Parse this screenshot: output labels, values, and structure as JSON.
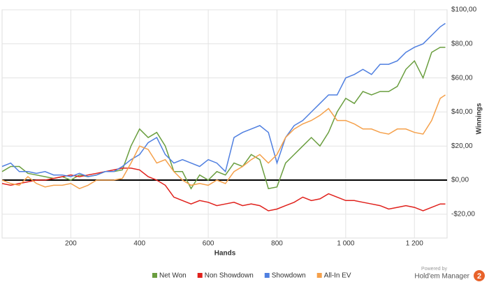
{
  "chart_data": {
    "type": "line",
    "x_label": "Hands",
    "y_label": "Winnings",
    "x": [
      0,
      25,
      50,
      75,
      100,
      125,
      150,
      175,
      200,
      225,
      250,
      275,
      300,
      325,
      350,
      375,
      400,
      425,
      450,
      475,
      500,
      525,
      550,
      575,
      600,
      625,
      650,
      675,
      700,
      725,
      750,
      775,
      800,
      825,
      850,
      875,
      900,
      925,
      950,
      975,
      1000,
      1025,
      1050,
      1075,
      1100,
      1125,
      1150,
      1175,
      1200,
      1225,
      1250,
      1275,
      1290
    ],
    "series": [
      {
        "name": "Net Won",
        "color": "#6a9e3f",
        "values": [
          5,
          8,
          8,
          4,
          3,
          2,
          1,
          2,
          0,
          3,
          2,
          3,
          5,
          5,
          6,
          20,
          30,
          25,
          28,
          20,
          5,
          5,
          -5,
          3,
          0,
          5,
          3,
          10,
          8,
          15,
          12,
          -5,
          -4,
          10,
          15,
          20,
          25,
          20,
          28,
          40,
          48,
          45,
          52,
          50,
          52,
          52,
          55,
          65,
          70,
          60,
          75,
          78,
          78
        ]
      },
      {
        "name": "Non Showdown",
        "color": "#e0201b",
        "values": [
          -2,
          -3,
          -2,
          -1,
          0,
          0,
          1,
          2,
          3,
          2,
          3,
          4,
          5,
          6,
          7,
          7,
          6,
          2,
          0,
          -3,
          -10,
          -12,
          -14,
          -12,
          -13,
          -15,
          -14,
          -13,
          -15,
          -14,
          -15,
          -18,
          -17,
          -15,
          -13,
          -10,
          -12,
          -11,
          -8,
          -10,
          -12,
          -12,
          -13,
          -14,
          -15,
          -17,
          -16,
          -15,
          -16,
          -18,
          -16,
          -14,
          -14
        ]
      },
      {
        "name": "Showdown",
        "color": "#4f7fe0",
        "values": [
          8,
          10,
          5,
          5,
          4,
          5,
          3,
          3,
          2,
          4,
          2,
          3,
          5,
          5,
          8,
          12,
          15,
          22,
          25,
          15,
          10,
          12,
          10,
          8,
          12,
          10,
          5,
          25,
          28,
          30,
          32,
          28,
          10,
          25,
          32,
          35,
          40,
          45,
          50,
          50,
          60,
          62,
          65,
          62,
          68,
          68,
          70,
          75,
          78,
          80,
          85,
          90,
          92
        ]
      },
      {
        "name": "All-In EV",
        "color": "#f5a04a",
        "values": [
          0,
          -2,
          -3,
          2,
          -2,
          -4,
          -3,
          -3,
          -2,
          -5,
          -3,
          0,
          0,
          0,
          1,
          10,
          20,
          18,
          10,
          12,
          5,
          0,
          -3,
          -2,
          -3,
          0,
          -2,
          5,
          8,
          12,
          15,
          10,
          15,
          25,
          30,
          33,
          35,
          38,
          42,
          35,
          35,
          33,
          30,
          30,
          28,
          27,
          30,
          30,
          28,
          27,
          35,
          48,
          50
        ]
      }
    ],
    "xlim": [
      0,
      1295
    ],
    "xticks": [
      200,
      400,
      600,
      800,
      {
        "value": 1000,
        "label": "1 000"
      },
      {
        "value": 1200,
        "label": "1 200"
      }
    ],
    "ylim": [
      -34,
      100
    ],
    "yticks": [
      {
        "value": 100,
        "label": "$100,00"
      },
      {
        "value": 80,
        "label": "$80,00"
      },
      {
        "value": 60,
        "label": "$60,00"
      },
      {
        "value": 40,
        "label": "$40,00"
      },
      {
        "value": 20,
        "label": "$20,00"
      },
      {
        "value": 0,
        "label": "$0,00"
      },
      {
        "value": -20,
        "label": "-$20,00"
      }
    ],
    "grid": true,
    "legend_position": "bottom",
    "logo": {
      "caption": "Powered by",
      "name": "Hold'em Manager",
      "badge": "2"
    }
  }
}
